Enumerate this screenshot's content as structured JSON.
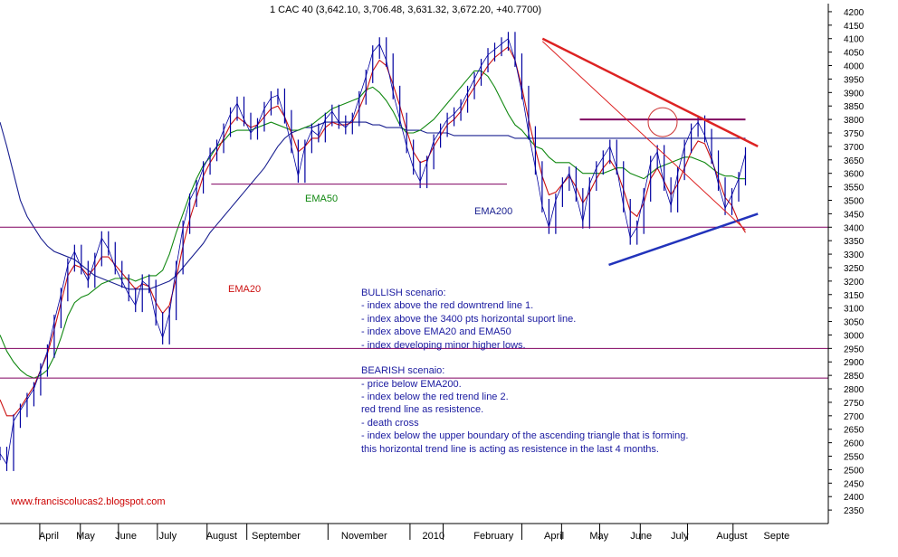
{
  "chart_data": {
    "type": "line",
    "title": "1 CAC 40 (3,642.10, 3,706.48, 3,631.32, 3,672.20, +40.7700)",
    "watermark": "www.franciscolucas2.blogspot.com",
    "ylim": [
      2300,
      4230
    ],
    "y_ticks": [
      2350,
      2400,
      2450,
      2500,
      2550,
      2600,
      2650,
      2700,
      2750,
      2800,
      2850,
      2900,
      2950,
      3000,
      3050,
      3100,
      3150,
      3200,
      3250,
      3300,
      3350,
      3400,
      3450,
      3500,
      3550,
      3600,
      3650,
      3700,
      3750,
      3800,
      3850,
      3900,
      3950,
      4000,
      4050,
      4100,
      4150,
      4200
    ],
    "x_months": [
      "April",
      "May",
      "June",
      "July",
      "August",
      "September",
      "November",
      "2010",
      "February",
      "April",
      "May",
      "June",
      "July",
      "August",
      "Septe"
    ],
    "x_month_pos": [
      0.06,
      0.105,
      0.152,
      0.205,
      0.262,
      0.317,
      0.425,
      0.523,
      0.585,
      0.67,
      0.725,
      0.774,
      0.823,
      0.878,
      0.935
    ],
    "x_month_dividers": [
      0.048,
      0.097,
      0.143,
      0.19,
      0.25,
      0.298,
      0.396,
      0.495,
      0.535,
      0.63,
      0.678,
      0.724,
      0.773,
      0.83,
      0.885
    ],
    "price": [
      2560,
      2520,
      2680,
      2720,
      2760,
      2800,
      2870,
      2940,
      3050,
      3150,
      3260,
      3310,
      3250,
      3200,
      3280,
      3360,
      3320,
      3250,
      3200,
      3150,
      3110,
      3200,
      3180,
      3060,
      2990,
      3080,
      3250,
      3400,
      3500,
      3550,
      3620,
      3670,
      3700,
      3760,
      3820,
      3860,
      3800,
      3750,
      3780,
      3840,
      3880,
      3890,
      3810,
      3700,
      3590,
      3700,
      3760,
      3740,
      3800,
      3830,
      3790,
      3770,
      3800,
      3880,
      3960,
      4050,
      4080,
      4020,
      3900,
      3800,
      3700,
      3620,
      3570,
      3640,
      3720,
      3760,
      3800,
      3820,
      3850,
      3900,
      3950,
      4000,
      4040,
      4060,
      4080,
      4100,
      4020,
      3900,
      3750,
      3620,
      3480,
      3400,
      3500,
      3560,
      3600,
      3520,
      3420,
      3560,
      3620,
      3660,
      3700,
      3620,
      3480,
      3360,
      3400,
      3520,
      3640,
      3680,
      3560,
      3480,
      3600,
      3700,
      3760,
      3790,
      3740,
      3660,
      3560,
      3470,
      3520,
      3580,
      3672
    ],
    "ema20": [
      2760,
      2700,
      2700,
      2730,
      2770,
      2810,
      2870,
      2930,
      3020,
      3120,
      3220,
      3260,
      3250,
      3220,
      3250,
      3290,
      3290,
      3260,
      3230,
      3200,
      3170,
      3190,
      3180,
      3120,
      3080,
      3110,
      3210,
      3330,
      3430,
      3510,
      3590,
      3640,
      3680,
      3730,
      3780,
      3810,
      3790,
      3770,
      3780,
      3810,
      3840,
      3850,
      3810,
      3750,
      3680,
      3700,
      3730,
      3730,
      3770,
      3790,
      3780,
      3780,
      3790,
      3840,
      3900,
      3980,
      4020,
      4000,
      3930,
      3850,
      3760,
      3680,
      3640,
      3650,
      3700,
      3740,
      3780,
      3800,
      3830,
      3880,
      3920,
      3960,
      4000,
      4030,
      4050,
      4070,
      4020,
      3920,
      3800,
      3690,
      3590,
      3520,
      3530,
      3560,
      3590,
      3550,
      3490,
      3530,
      3580,
      3620,
      3650,
      3610,
      3540,
      3460,
      3440,
      3490,
      3580,
      3620,
      3570,
      3520,
      3560,
      3620,
      3680,
      3720,
      3710,
      3650,
      3580,
      3510,
      3480,
      3420,
      3380
    ],
    "ema50": [
      3000,
      2940,
      2900,
      2870,
      2850,
      2840,
      2850,
      2870,
      2920,
      2990,
      3070,
      3120,
      3140,
      3150,
      3170,
      3190,
      3200,
      3210,
      3210,
      3210,
      3200,
      3210,
      3220,
      3220,
      3240,
      3300,
      3380,
      3450,
      3520,
      3580,
      3630,
      3660,
      3700,
      3720,
      3750,
      3760,
      3760,
      3760,
      3770,
      3780,
      3790,
      3780,
      3770,
      3760,
      3760,
      3770,
      3780,
      3800,
      3820,
      3840,
      3850,
      3860,
      3870,
      3880,
      3910,
      3920,
      3900,
      3870,
      3830,
      3780,
      3750,
      3750,
      3760,
      3780,
      3800,
      3830,
      3860,
      3890,
      3920,
      3950,
      3980,
      3980,
      3960,
      3920,
      3870,
      3820,
      3780,
      3760,
      3730,
      3700,
      3690,
      3660,
      3640,
      3640,
      3640,
      3620,
      3600,
      3600,
      3600,
      3600,
      3610,
      3620,
      3620,
      3600,
      3590,
      3580,
      3600,
      3620,
      3630,
      3640,
      3650,
      3660,
      3660,
      3650,
      3640,
      3620,
      3600,
      3590,
      3590,
      3580,
      3580
    ],
    "ema200": [
      3790,
      3700,
      3600,
      3500,
      3440,
      3400,
      3360,
      3330,
      3310,
      3300,
      3290,
      3280,
      3260,
      3240,
      3220,
      3210,
      3200,
      3190,
      3180,
      3170,
      3170,
      3170,
      3170,
      3180,
      3190,
      3200,
      3220,
      3250,
      3280,
      3310,
      3340,
      3380,
      3410,
      3440,
      3470,
      3500,
      3530,
      3560,
      3590,
      3620,
      3660,
      3700,
      3730,
      3750,
      3760,
      3770,
      3770,
      3780,
      3790,
      3790,
      3790,
      3790,
      3790,
      3790,
      3790,
      3780,
      3780,
      3770,
      3770,
      3770,
      3760,
      3760,
      3760,
      3750,
      3750,
      3750,
      3750,
      3740,
      3740,
      3740,
      3740,
      3740,
      3740,
      3740,
      3740,
      3740,
      3730,
      3730,
      3730,
      3730,
      3730,
      3730,
      3730,
      3730,
      3730,
      3730,
      3730,
      3730,
      3730,
      3730,
      3730,
      3730,
      3730,
      3730,
      3730,
      3730,
      3730,
      3730,
      3730,
      3730,
      3730,
      3730,
      3730,
      3730,
      3730,
      3730,
      3730,
      3730,
      3730,
      3730,
      3730
    ],
    "lines": {
      "horizontal_support_3400": 3400,
      "horizontal_2950": 2950,
      "horizontal_2840": 2840,
      "horizontal_3560": [
        0.255,
        0.612,
        3560
      ],
      "resistance_3800": [
        0.7,
        0.9,
        3800
      ],
      "downtrend_red_1": [
        [
          0.655,
          4100
        ],
        [
          0.915,
          3700
        ]
      ],
      "ascending_blue": [
        [
          0.735,
          3260
        ],
        [
          0.915,
          3450
        ]
      ],
      "color_trend_red": "#dd2222",
      "color_ascending": "#2233bb",
      "color_horizontal": "#800060"
    },
    "legend_labels": {
      "ema20": "EMA20",
      "ema50": "EMA50",
      "ema200": "EMA200"
    },
    "colors": {
      "price": "#0000a0",
      "ema20": "#cc1111",
      "ema50": "#118811",
      "ema200": "#1a2090",
      "annotation": "#1a1aa0"
    }
  },
  "annotations": {
    "bullish_title": "BULLISH scenario:",
    "bullish_1": "- index above the red downtrend line 1.",
    "bullish_2": "- index above the 3400 pts horizontal suport line.",
    "bullish_3": "- index  above EMA20 and EMA50",
    "bullish_4": "- index developing minor higher lows.",
    "bearish_title": "BEARISH scenaio:",
    "bearish_1": "- price below EMA200.",
    "bearish_2": "- index below the red trend line 2.",
    "bearish_3": "  red trend line as resistence.",
    "bearish_4": "- death cross",
    "bearish_5": "- index below the upper boundary of the ascending  triangle that is forming.",
    "bearish_6": "  this horizontal trend line is acting as resistence in the last 4 months."
  }
}
